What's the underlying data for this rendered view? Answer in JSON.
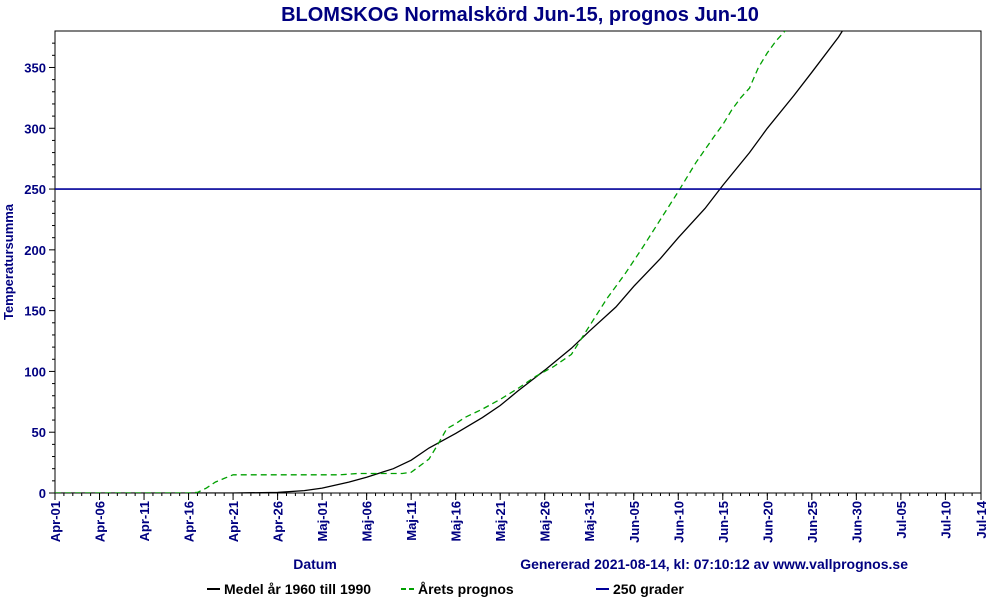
{
  "chart_data": {
    "type": "line",
    "title": "BLOMSKOG Normalskörd Jun-15, prognos Jun-10",
    "xlabel": "Datum",
    "ylabel": "Temperatursumma",
    "x_ticks": [
      "Apr-01",
      "Apr-06",
      "Apr-11",
      "Apr-16",
      "Apr-21",
      "Apr-26",
      "Maj-01",
      "Maj-06",
      "Maj-11",
      "Maj-16",
      "Maj-21",
      "Maj-26",
      "Maj-31",
      "Jun-05",
      "Jun-10",
      "Jun-15",
      "Jun-20",
      "Jun-25",
      "Jun-30",
      "Jul-05",
      "Jul-10",
      "Jul-14"
    ],
    "x_tick_days": [
      0,
      5,
      10,
      15,
      20,
      25,
      30,
      35,
      40,
      45,
      50,
      55,
      60,
      65,
      70,
      75,
      80,
      85,
      90,
      95,
      100,
      104
    ],
    "xlim_days": [
      0,
      104
    ],
    "y_ticks": [
      0,
      50,
      100,
      150,
      200,
      250,
      300,
      350
    ],
    "ylim": [
      0,
      380
    ],
    "grid": false,
    "legend_position": "bottom",
    "generated_text": "Genererad 2021-08-14, kl: 07:10:12 av www.vallprognos.se",
    "series": [
      {
        "name": "Medel år 1960 till 1990",
        "color": "#000000",
        "dash": "solid",
        "days": [
          0,
          16,
          20,
          25,
          28,
          30,
          33,
          35,
          38,
          40,
          42,
          45,
          48,
          50,
          52,
          55,
          58,
          60,
          63,
          65,
          68,
          70,
          73,
          75,
          78,
          80,
          83,
          85,
          88,
          90,
          91.5
        ],
        "values": [
          0,
          0,
          0,
          0.5,
          2,
          4,
          9,
          13,
          20,
          27,
          37,
          49,
          62,
          72,
          84,
          101,
          119,
          133,
          153,
          170,
          193,
          210,
          234,
          253,
          280,
          300,
          327,
          346,
          375,
          398,
          412
        ]
      },
      {
        "name": "Årets prognos",
        "color": "#00a000",
        "dash": "dashed",
        "days": [
          0,
          15,
          16,
          17,
          18,
          19,
          20,
          22,
          24,
          26,
          28,
          30,
          32,
          34,
          36,
          38,
          39,
          40,
          42,
          43,
          44,
          45,
          46,
          48,
          50,
          52,
          54,
          56,
          58,
          60,
          62,
          64,
          66,
          68,
          70,
          72,
          74,
          75,
          76,
          77,
          78,
          79,
          80,
          81,
          82,
          83,
          84
        ],
        "values": [
          0,
          0,
          0.5,
          4,
          9,
          12,
          15,
          15,
          15,
          15,
          15,
          15,
          15,
          16,
          16,
          16,
          16,
          17,
          28,
          40,
          53,
          57,
          62,
          69,
          77,
          86,
          96,
          104,
          114,
          137,
          160,
          180,
          202,
          225,
          248,
          272,
          293,
          303,
          315,
          325,
          333,
          350,
          362,
          372,
          380,
          392,
          402
        ]
      },
      {
        "name": "250 grader",
        "color": "#000099",
        "dash": "solid",
        "days": [
          0,
          104
        ],
        "values": [
          250,
          250
        ]
      }
    ]
  }
}
